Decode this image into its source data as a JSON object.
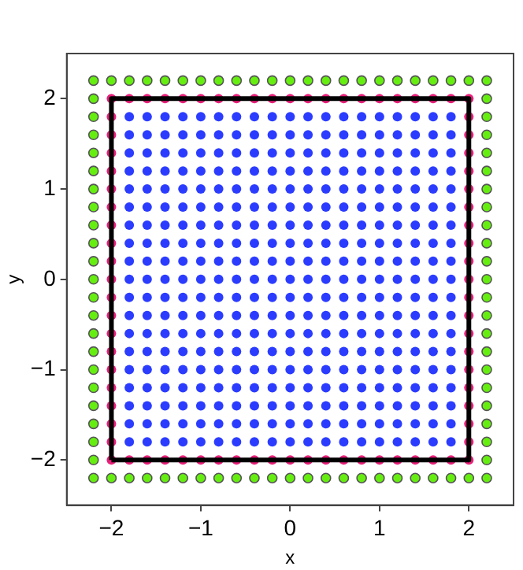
{
  "chart_data": {
    "type": "scatter",
    "xlabel": "x",
    "ylabel": "y",
    "xlim": [
      -2.5,
      2.5
    ],
    "ylim": [
      -2.5,
      2.5
    ],
    "xticks": [
      {
        "value": -2,
        "label": "−2"
      },
      {
        "value": -1,
        "label": "−1"
      },
      0,
      1,
      2
    ],
    "yticks": [
      {
        "value": -2,
        "label": "−2"
      },
      {
        "value": -1,
        "label": "−1"
      },
      0,
      1,
      2
    ],
    "grid": false,
    "legend": false,
    "marker": "circle",
    "series": [
      {
        "color": "#66ee11",
        "x": [
          -2.2,
          -2,
          -1.8,
          -1.6,
          -1.4,
          -1.2,
          -1,
          -0.8,
          -0.6,
          -0.4,
          -0.2,
          0,
          0.2,
          0.4,
          0.6,
          0.8,
          1,
          1.2,
          1.4,
          1.6,
          1.8,
          2,
          2.2,
          2.2,
          2.2,
          2.2,
          2.2,
          2.2,
          2.2,
          2.2,
          2.2,
          2.2,
          2.2,
          2.2,
          2.2,
          2.2,
          2.2,
          2.2,
          2.2,
          2.2,
          2.2,
          2.2,
          2.2,
          2.2,
          2.2,
          2,
          1.8,
          1.6,
          1.4,
          1.2,
          1,
          0.8,
          0.6,
          0.4,
          0.2,
          0,
          -0.2,
          -0.4,
          -0.6,
          -0.8,
          -1,
          -1.2,
          -1.4,
          -1.6,
          -1.8,
          -2,
          -2.2,
          -2.2,
          -2.2,
          -2.2,
          -2.2,
          -2.2,
          -2.2,
          -2.2,
          -2.2,
          -2.2,
          -2.2,
          -2.2,
          -2.2,
          -2.2,
          -2.2,
          -2.2,
          -2.2,
          -2.2,
          -2.2,
          -2.2,
          -2.2,
          -2.2
        ],
        "values": [
          -2.2,
          -2.2,
          -2.2,
          -2.2,
          -2.2,
          -2.2,
          -2.2,
          -2.2,
          -2.2,
          -2.2,
          -2.2,
          -2.2,
          -2.2,
          -2.2,
          -2.2,
          -2.2,
          -2.2,
          -2.2,
          -2.2,
          -2.2,
          -2.2,
          -2.2,
          -2.2,
          -2,
          -1.8,
          -1.6,
          -1.4,
          -1.2,
          -1,
          -0.8,
          -0.6,
          -0.4,
          -0.2,
          0,
          0.2,
          0.4,
          0.6,
          0.8,
          1,
          1.2,
          1.4,
          1.6,
          1.8,
          2,
          2.2,
          2.2,
          2.2,
          2.2,
          2.2,
          2.2,
          2.2,
          2.2,
          2.2,
          2.2,
          2.2,
          2.2,
          2.2,
          2.2,
          2.2,
          2.2,
          2.2,
          2.2,
          2.2,
          2.2,
          2.2,
          2.2,
          2.2,
          2,
          1.8,
          1.6,
          1.4,
          1.2,
          1,
          0.8,
          0.6,
          0.4,
          0.2,
          0,
          -0.2,
          -0.4,
          -0.6,
          -0.8,
          -1,
          -1.2,
          -1.4,
          -1.6,
          -1.8,
          -2
        ]
      },
      {
        "color": "#2b3cff",
        "x": [
          -1.8,
          -1.6,
          -1.4,
          -1.2,
          -1,
          -0.8,
          -0.6,
          -0.4,
          -0.2,
          0,
          0.2,
          0.4,
          0.6,
          0.8,
          1,
          1.2,
          1.4,
          1.6,
          1.8,
          -1.8,
          -1.6,
          -1.4,
          -1.2,
          -1,
          -0.8,
          -0.6,
          -0.4,
          -0.2,
          0,
          0.2,
          0.4,
          0.6,
          0.8,
          1,
          1.2,
          1.4,
          1.6,
          1.8,
          -1.8,
          -1.6,
          -1.4,
          -1.2,
          -1,
          -0.8,
          -0.6,
          -0.4,
          -0.2,
          0,
          0.2,
          0.4,
          0.6,
          0.8,
          1,
          1.2,
          1.4,
          1.6,
          1.8,
          -1.8,
          -1.6,
          -1.4,
          -1.2,
          -1,
          -0.8,
          -0.6,
          -0.4,
          -0.2,
          0,
          0.2,
          0.4,
          0.6,
          0.8,
          1,
          1.2,
          1.4,
          1.6,
          1.8,
          -1.8,
          -1.6,
          -1.4,
          -1.2,
          -1,
          -0.8,
          -0.6,
          -0.4,
          -0.2,
          0,
          0.2,
          0.4,
          0.6,
          0.8,
          1,
          1.2,
          1.4,
          1.6,
          1.8,
          -1.8,
          -1.6,
          -1.4,
          -1.2,
          -1,
          -0.8,
          -0.6,
          -0.4,
          -0.2,
          0,
          0.2,
          0.4,
          0.6,
          0.8,
          1,
          1.2,
          1.4,
          1.6,
          1.8,
          -1.8,
          -1.6,
          -1.4,
          -1.2,
          -1,
          -0.8,
          -0.6,
          -0.4,
          -0.2,
          0,
          0.2,
          0.4,
          0.6,
          0.8,
          1,
          1.2,
          1.4,
          1.6,
          1.8,
          -1.8,
          -1.6,
          -1.4,
          -1.2,
          -1,
          -0.8,
          -0.6,
          -0.4,
          -0.2,
          0,
          0.2,
          0.4,
          0.6,
          0.8,
          1,
          1.2,
          1.4,
          1.6,
          1.8,
          -1.8,
          -1.6,
          -1.4,
          -1.2,
          -1,
          -0.8,
          -0.6,
          -0.4,
          -0.2,
          0,
          0.2,
          0.4,
          0.6,
          0.8,
          1,
          1.2,
          1.4,
          1.6,
          1.8,
          -1.8,
          -1.6,
          -1.4,
          -1.2,
          -1,
          -0.8,
          -0.6,
          -0.4,
          -0.2,
          0,
          0.2,
          0.4,
          0.6,
          0.8,
          1,
          1.2,
          1.4,
          1.6,
          1.8,
          -1.8,
          -1.6,
          -1.4,
          -1.2,
          -1,
          -0.8,
          -0.6,
          -0.4,
          -0.2,
          0,
          0.2,
          0.4,
          0.6,
          0.8,
          1,
          1.2,
          1.4,
          1.6,
          1.8,
          -1.8,
          -1.6,
          -1.4,
          -1.2,
          -1,
          -0.8,
          -0.6,
          -0.4,
          -0.2,
          0,
          0.2,
          0.4,
          0.6,
          0.8,
          1,
          1.2,
          1.4,
          1.6,
          1.8,
          -1.8,
          -1.6,
          -1.4,
          -1.2,
          -1,
          -0.8,
          -0.6,
          -0.4,
          -0.2,
          0,
          0.2,
          0.4,
          0.6,
          0.8,
          1,
          1.2,
          1.4,
          1.6,
          1.8,
          -1.8,
          -1.6,
          -1.4,
          -1.2,
          -1,
          -0.8,
          -0.6,
          -0.4,
          -0.2,
          0,
          0.2,
          0.4,
          0.6,
          0.8,
          1,
          1.2,
          1.4,
          1.6,
          1.8,
          -1.8,
          -1.6,
          -1.4,
          -1.2,
          -1,
          -0.8,
          -0.6,
          -0.4,
          -0.2,
          0,
          0.2,
          0.4,
          0.6,
          0.8,
          1,
          1.2,
          1.4,
          1.6,
          1.8,
          -1.8,
          -1.6,
          -1.4,
          -1.2,
          -1,
          -0.8,
          -0.6,
          -0.4,
          -0.2,
          0,
          0.2,
          0.4,
          0.6,
          0.8,
          1,
          1.2,
          1.4,
          1.6,
          1.8,
          -1.8,
          -1.6,
          -1.4,
          -1.2,
          -1,
          -0.8,
          -0.6,
          -0.4,
          -0.2,
          0,
          0.2,
          0.4,
          0.6,
          0.8,
          1,
          1.2,
          1.4,
          1.6,
          1.8,
          -1.8,
          -1.6,
          -1.4,
          -1.2,
          -1,
          -0.8,
          -0.6,
          -0.4,
          -0.2,
          0,
          0.2,
          0.4,
          0.6,
          0.8,
          1,
          1.2,
          1.4,
          1.6,
          1.8,
          -1.8,
          -1.6,
          -1.4,
          -1.2,
          -1,
          -0.8,
          -0.6,
          -0.4,
          -0.2,
          0,
          0.2,
          0.4,
          0.6,
          0.8,
          1,
          1.2,
          1.4,
          1.6,
          1.8
        ],
        "values": [
          -1.8,
          -1.8,
          -1.8,
          -1.8,
          -1.8,
          -1.8,
          -1.8,
          -1.8,
          -1.8,
          -1.8,
          -1.8,
          -1.8,
          -1.8,
          -1.8,
          -1.8,
          -1.8,
          -1.8,
          -1.8,
          -1.8,
          -1.6,
          -1.6,
          -1.6,
          -1.6,
          -1.6,
          -1.6,
          -1.6,
          -1.6,
          -1.6,
          -1.6,
          -1.6,
          -1.6,
          -1.6,
          -1.6,
          -1.6,
          -1.6,
          -1.6,
          -1.6,
          -1.6,
          -1.4,
          -1.4,
          -1.4,
          -1.4,
          -1.4,
          -1.4,
          -1.4,
          -1.4,
          -1.4,
          -1.4,
          -1.4,
          -1.4,
          -1.4,
          -1.4,
          -1.4,
          -1.4,
          -1.4,
          -1.4,
          -1.4,
          -1.2,
          -1.2,
          -1.2,
          -1.2,
          -1.2,
          -1.2,
          -1.2,
          -1.2,
          -1.2,
          -1.2,
          -1.2,
          -1.2,
          -1.2,
          -1.2,
          -1.2,
          -1.2,
          -1.2,
          -1.2,
          -1.2,
          -1,
          -1,
          -1,
          -1,
          -1,
          -1,
          -1,
          -1,
          -1,
          -1,
          -1,
          -1,
          -1,
          -1,
          -1,
          -1,
          -1,
          -1,
          -1,
          -0.8,
          -0.8,
          -0.8,
          -0.8,
          -0.8,
          -0.8,
          -0.8,
          -0.8,
          -0.8,
          -0.8,
          -0.8,
          -0.8,
          -0.8,
          -0.8,
          -0.8,
          -0.8,
          -0.8,
          -0.8,
          -0.8,
          -0.6,
          -0.6,
          -0.6,
          -0.6,
          -0.6,
          -0.6,
          -0.6,
          -0.6,
          -0.6,
          -0.6,
          -0.6,
          -0.6,
          -0.6,
          -0.6,
          -0.6,
          -0.6,
          -0.6,
          -0.6,
          -0.6,
          -0.4,
          -0.4,
          -0.4,
          -0.4,
          -0.4,
          -0.4,
          -0.4,
          -0.4,
          -0.4,
          -0.4,
          -0.4,
          -0.4,
          -0.4,
          -0.4,
          -0.4,
          -0.4,
          -0.4,
          -0.4,
          -0.4,
          -0.2,
          -0.2,
          -0.2,
          -0.2,
          -0.2,
          -0.2,
          -0.2,
          -0.2,
          -0.2,
          -0.2,
          -0.2,
          -0.2,
          -0.2,
          -0.2,
          -0.2,
          -0.2,
          -0.2,
          -0.2,
          -0.2,
          0,
          0,
          0,
          0,
          0,
          0,
          0,
          0,
          0,
          0,
          0,
          0,
          0,
          0,
          0,
          0,
          0,
          0,
          0,
          0.2,
          0.2,
          0.2,
          0.2,
          0.2,
          0.2,
          0.2,
          0.2,
          0.2,
          0.2,
          0.2,
          0.2,
          0.2,
          0.2,
          0.2,
          0.2,
          0.2,
          0.2,
          0.2,
          0.4,
          0.4,
          0.4,
          0.4,
          0.4,
          0.4,
          0.4,
          0.4,
          0.4,
          0.4,
          0.4,
          0.4,
          0.4,
          0.4,
          0.4,
          0.4,
          0.4,
          0.4,
          0.4,
          0.6,
          0.6,
          0.6,
          0.6,
          0.6,
          0.6,
          0.6,
          0.6,
          0.6,
          0.6,
          0.6,
          0.6,
          0.6,
          0.6,
          0.6,
          0.6,
          0.6,
          0.6,
          0.6,
          0.8,
          0.8,
          0.8,
          0.8,
          0.8,
          0.8,
          0.8,
          0.8,
          0.8,
          0.8,
          0.8,
          0.8,
          0.8,
          0.8,
          0.8,
          0.8,
          0.8,
          0.8,
          0.8,
          1,
          1,
          1,
          1,
          1,
          1,
          1,
          1,
          1,
          1,
          1,
          1,
          1,
          1,
          1,
          1,
          1,
          1,
          1,
          1.2,
          1.2,
          1.2,
          1.2,
          1.2,
          1.2,
          1.2,
          1.2,
          1.2,
          1.2,
          1.2,
          1.2,
          1.2,
          1.2,
          1.2,
          1.2,
          1.2,
          1.2,
          1.2,
          1.4,
          1.4,
          1.4,
          1.4,
          1.4,
          1.4,
          1.4,
          1.4,
          1.4,
          1.4,
          1.4,
          1.4,
          1.4,
          1.4,
          1.4,
          1.4,
          1.4,
          1.4,
          1.4,
          1.6,
          1.6,
          1.6,
          1.6,
          1.6,
          1.6,
          1.6,
          1.6,
          1.6,
          1.6,
          1.6,
          1.6,
          1.6,
          1.6,
          1.6,
          1.6,
          1.6,
          1.6,
          1.6,
          1.8,
          1.8,
          1.8,
          1.8,
          1.8,
          1.8,
          1.8,
          1.8,
          1.8,
          1.8,
          1.8,
          1.8,
          1.8,
          1.8,
          1.8,
          1.8,
          1.8,
          1.8,
          1.8
        ]
      },
      {
        "color": "#e8207a",
        "x": [
          -2,
          -1.8,
          -1.6,
          -1.4,
          -1.2,
          -1,
          -0.8,
          -0.6,
          -0.4,
          -0.2,
          0,
          0.2,
          0.4,
          0.6,
          0.8,
          1,
          1.2,
          1.4,
          1.6,
          1.8,
          2,
          2,
          2,
          2,
          2,
          2,
          2,
          2,
          2,
          2,
          2,
          2,
          2,
          2,
          2,
          2,
          2,
          2,
          2,
          2,
          2,
          1.8,
          1.6,
          1.4,
          1.2,
          1,
          0.8,
          0.6,
          0.4,
          0.2,
          0,
          -0.2,
          -0.4,
          -0.6,
          -0.8,
          -1,
          -1.2,
          -1.4,
          -1.6,
          -1.8,
          -2,
          -2,
          -2,
          -2,
          -2,
          -2,
          -2,
          -2,
          -2,
          -2,
          -2,
          -2,
          -2,
          -2,
          -2,
          -2,
          -2,
          -2,
          -2,
          -2
        ],
        "values": [
          -2,
          -2,
          -2,
          -2,
          -2,
          -2,
          -2,
          -2,
          -2,
          -2,
          -2,
          -2,
          -2,
          -2,
          -2,
          -2,
          -2,
          -2,
          -2,
          -2,
          -2,
          -1.8,
          -1.6,
          -1.4,
          -1.2,
          -1,
          -0.8,
          -0.6,
          -0.4,
          -0.2,
          0,
          0.2,
          0.4,
          0.6,
          0.8,
          1,
          1.2,
          1.4,
          1.6,
          1.8,
          2,
          2,
          2,
          2,
          2,
          2,
          2,
          2,
          2,
          2,
          2,
          2,
          2,
          2,
          2,
          2,
          2,
          2,
          2,
          2,
          2,
          1.8,
          1.6,
          1.4,
          1.2,
          1,
          0.8,
          0.6,
          0.4,
          0.2,
          0,
          -0.2,
          -0.4,
          -0.6,
          -0.8,
          -1,
          -1.2,
          -1.4,
          -1.6,
          -1.8
        ]
      },
      {
        "type": "line",
        "color": "#000000",
        "marker": "none",
        "x": [
          -2,
          -2,
          2,
          2
        ],
        "values": [
          -2,
          2,
          2,
          -2
        ]
      },
      {
        "type": "line",
        "color": "#000000",
        "marker": "none",
        "x": [
          -2,
          2
        ],
        "values": [
          -2,
          -2
        ]
      }
    ]
  }
}
